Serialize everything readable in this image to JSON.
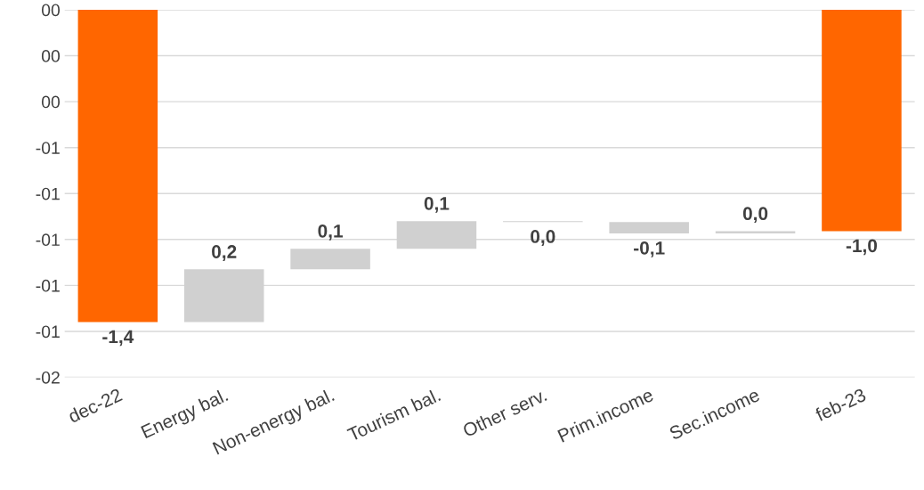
{
  "chart_data": {
    "type": "bar",
    "categories": [
      "dec-22",
      "Energy bal.",
      "Non-energy bal.",
      "Tourism bal.",
      "Other serv.",
      "Prim.income",
      "Sec.income",
      "feb-23"
    ],
    "base": [
      0,
      -1.36,
      -1.13,
      -1.04,
      -0.92,
      -0.924,
      -0.974,
      0
    ],
    "values": [
      -1.36,
      0.23,
      0.09,
      0.12,
      -0.004,
      -0.05,
      0.01,
      -0.964
    ],
    "colors": [
      "#ff6600",
      "#d0d0d0",
      "#d0d0d0",
      "#d0d0d0",
      "#d0d0d0",
      "#d0d0d0",
      "#d0d0d0",
      "#ff6600"
    ],
    "value_labels": [
      "-1,4",
      "0,2",
      "0,1",
      "0,1",
      "0,0",
      "-0,1",
      "0,0",
      "-1,0"
    ],
    "ylim": [
      -1.6,
      0
    ],
    "yticks": [
      {
        "value": 0,
        "label": "00"
      },
      {
        "value": -0.2,
        "label": "00"
      },
      {
        "value": -0.4,
        "label": "00"
      },
      {
        "value": -0.6,
        "label": "-01"
      },
      {
        "value": -0.8,
        "label": "-01"
      },
      {
        "value": -1.0,
        "label": "-01"
      },
      {
        "value": -1.2,
        "label": "-01"
      },
      {
        "value": -1.4,
        "label": "-01"
      },
      {
        "value": -1.6,
        "label": "-02"
      }
    ],
    "grid": "y",
    "legend": false
  }
}
